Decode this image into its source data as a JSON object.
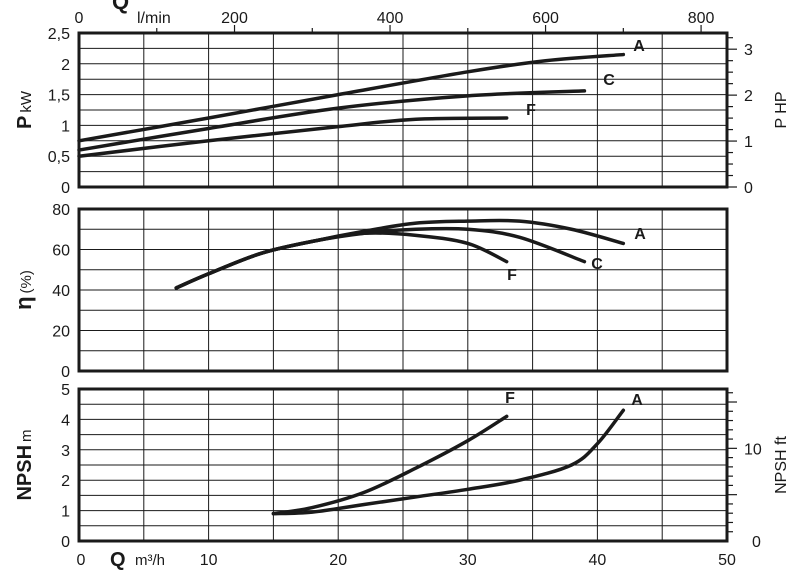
{
  "chart_data": [
    {
      "type": "line",
      "ylabel_main": "P",
      "ylabel_unit": "kW",
      "y2label": "P HP",
      "top_axis_label": "Q",
      "top_axis_unit": "l/min",
      "top_axis_ticks": [
        "0",
        "200",
        "400",
        "600",
        "800"
      ],
      "xlim": [
        0,
        50
      ],
      "ylim": [
        0,
        2.5
      ],
      "yticks": [
        "0",
        "0,5",
        "1",
        "1,5",
        "2",
        "2,5"
      ],
      "y2ticks": [
        "0",
        "1",
        "2",
        "3"
      ],
      "grid": true,
      "series": [
        {
          "name": "A",
          "x": [
            0,
            10,
            20,
            30,
            36,
            42
          ],
          "y": [
            0.75,
            1.12,
            1.5,
            1.87,
            2.05,
            2.15
          ]
        },
        {
          "name": "C",
          "x": [
            0,
            10,
            20,
            30,
            39
          ],
          "y": [
            0.6,
            0.95,
            1.28,
            1.48,
            1.56
          ]
        },
        {
          "name": "F",
          "x": [
            0,
            10,
            20,
            26,
            33
          ],
          "y": [
            0.5,
            0.75,
            0.98,
            1.1,
            1.12
          ]
        }
      ]
    },
    {
      "type": "line",
      "ylabel_main": "η",
      "ylabel_unit": "(%)",
      "xlim": [
        0,
        50
      ],
      "ylim": [
        0,
        80
      ],
      "yticks": [
        "0",
        "20",
        "40",
        "60",
        "80"
      ],
      "grid": true,
      "series": [
        {
          "name": "A",
          "x": [
            7.5,
            10,
            14,
            18,
            22,
            26,
            30,
            34,
            38,
            42
          ],
          "y": [
            41,
            48,
            58,
            64,
            69,
            73,
            74,
            74,
            70,
            63
          ]
        },
        {
          "name": "C",
          "x": [
            7.5,
            10,
            14,
            18,
            22,
            26,
            30,
            34,
            39
          ],
          "y": [
            41,
            48,
            58,
            64,
            68,
            70,
            70,
            66,
            54
          ]
        },
        {
          "name": "F",
          "x": [
            7.5,
            10,
            14,
            18,
            22,
            26,
            30,
            33
          ],
          "y": [
            41,
            48,
            58,
            64,
            68,
            67,
            63,
            54
          ]
        }
      ]
    },
    {
      "type": "line",
      "ylabel_main": "NPSH",
      "ylabel_unit": "m",
      "y2label": "NPSH ft",
      "xlabel_main": "Q",
      "xlabel_unit": "m³/h",
      "xlim": [
        0,
        50
      ],
      "ylim": [
        0,
        5
      ],
      "xticks": [
        "0",
        "10",
        "20",
        "30",
        "40",
        "50"
      ],
      "yticks": [
        "0",
        "1",
        "2",
        "3",
        "4",
        "5"
      ],
      "y2ticks": [
        "0",
        "10"
      ],
      "grid": true,
      "series": [
        {
          "name": "F",
          "x": [
            15,
            18,
            22,
            26,
            30,
            33
          ],
          "y": [
            0.9,
            1.1,
            1.6,
            2.4,
            3.3,
            4.1
          ]
        },
        {
          "name": "A",
          "x": [
            15,
            18,
            22,
            26,
            30,
            34,
            38,
            40,
            42
          ],
          "y": [
            0.9,
            0.95,
            1.2,
            1.45,
            1.7,
            2.0,
            2.5,
            3.2,
            4.3
          ]
        }
      ]
    }
  ]
}
